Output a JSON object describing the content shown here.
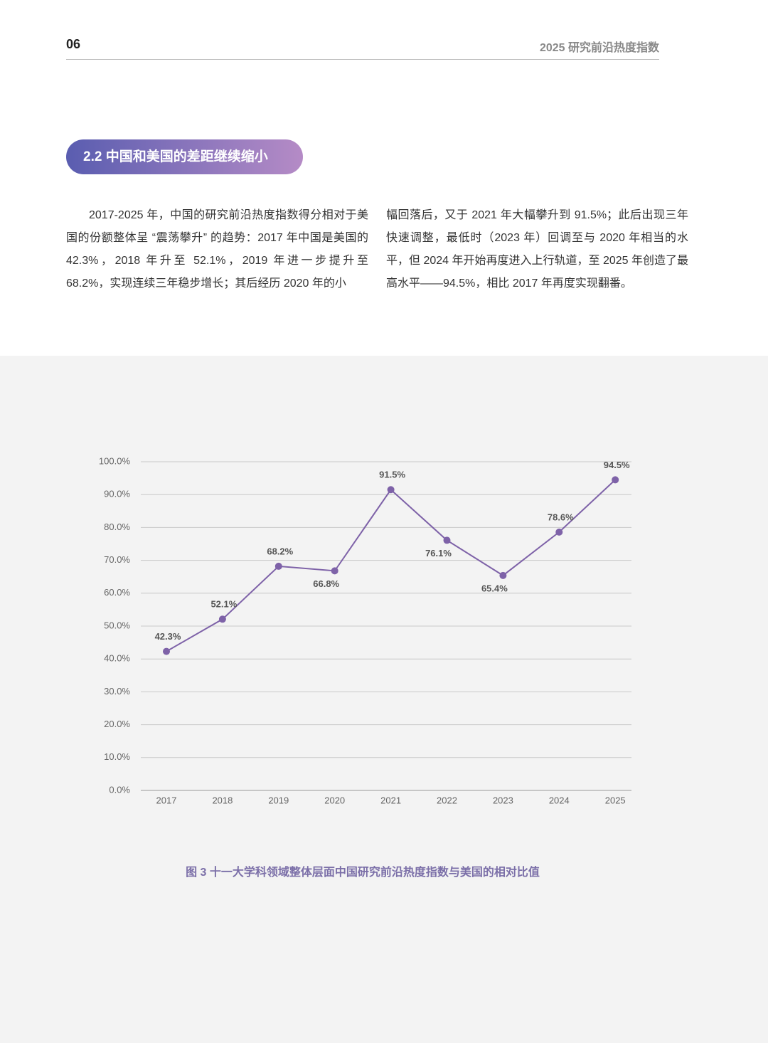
{
  "header": {
    "page_number": "06",
    "title": "2025 研究前沿热度指数"
  },
  "section_title": "2.2 中国和美国的差距继续缩小",
  "body_columns": [
    "2017-2025 年，中国的研究前沿热度指数得分相对于美国的份额整体呈 “震荡攀升” 的趋势：2017 年中国是美国的 42.3%，2018 年升至 52.1%，2019 年进一步提升至 68.2%，实现连续三年稳步增长；其后经历 2020 年的小",
    "幅回落后，又于 2021 年大幅攀升到 91.5%；此后出现三年快速调整，最低时（2023 年）回调至与 2020 年相当的水平，但 2024 年开始再度进入上行轨道，至 2025 年创造了最高水平——94.5%，相比 2017 年再度实现翻番。"
  ],
  "chart_data": {
    "type": "line",
    "caption": "图 3 十一大学科领域整体层面中国研究前沿热度指数与美国的相对比值",
    "categories": [
      "2017",
      "2018",
      "2019",
      "2020",
      "2021",
      "2022",
      "2023",
      "2024",
      "2025"
    ],
    "values": [
      42.3,
      52.1,
      68.2,
      66.8,
      91.5,
      76.1,
      65.4,
      78.6,
      94.5
    ],
    "value_labels": [
      "42.3%",
      "52.1%",
      "68.2%",
      "66.8%",
      "91.5%",
      "76.1%",
      "65.4%",
      "78.6%",
      "94.5%"
    ],
    "color": "#7e62a8",
    "ylim": [
      0,
      100
    ],
    "yticks": [
      {
        "value": 0,
        "label": "0.0%"
      },
      {
        "value": 10,
        "label": "10.0%"
      },
      {
        "value": 20,
        "label": "20.0%"
      },
      {
        "value": 30,
        "label": "30.0%"
      },
      {
        "value": 40,
        "label": "40.0%"
      },
      {
        "value": 50,
        "label": "50.0%"
      },
      {
        "value": 60,
        "label": "60.0%"
      },
      {
        "value": 70,
        "label": "70.0%"
      },
      {
        "value": 80,
        "label": "80.0%"
      },
      {
        "value": 90,
        "label": "90.0%"
      },
      {
        "value": 100,
        "label": "100.0%"
      }
    ],
    "grid": true
  }
}
